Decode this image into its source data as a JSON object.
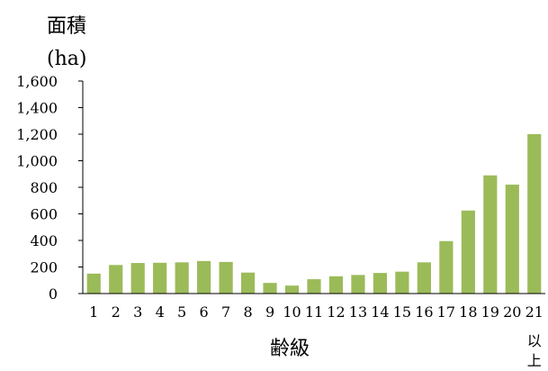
{
  "chart_data": {
    "type": "bar",
    "ylabel_line1": "面積",
    "ylabel_line2": "(ha)",
    "xlabel": "齢級",
    "ylim": [
      0,
      1600
    ],
    "yticks": [
      "1,600",
      "1,400",
      "1,200",
      "1,000",
      "800",
      "600",
      "400",
      "200",
      "0"
    ],
    "ytick_values": [
      1600,
      1400,
      1200,
      1000,
      800,
      600,
      400,
      200,
      0
    ],
    "categories": [
      "1",
      "2",
      "3",
      "4",
      "5",
      "6",
      "7",
      "8",
      "9",
      "10",
      "11",
      "12",
      "13",
      "14",
      "15",
      "16",
      "17",
      "18",
      "19",
      "20",
      "21"
    ],
    "last_category_suffix": [
      "以",
      "上"
    ],
    "values": [
      150,
      215,
      230,
      232,
      235,
      245,
      238,
      158,
      80,
      60,
      108,
      130,
      140,
      155,
      165,
      235,
      395,
      625,
      890,
      820,
      1200
    ],
    "bar_color": "#9bbb59"
  }
}
